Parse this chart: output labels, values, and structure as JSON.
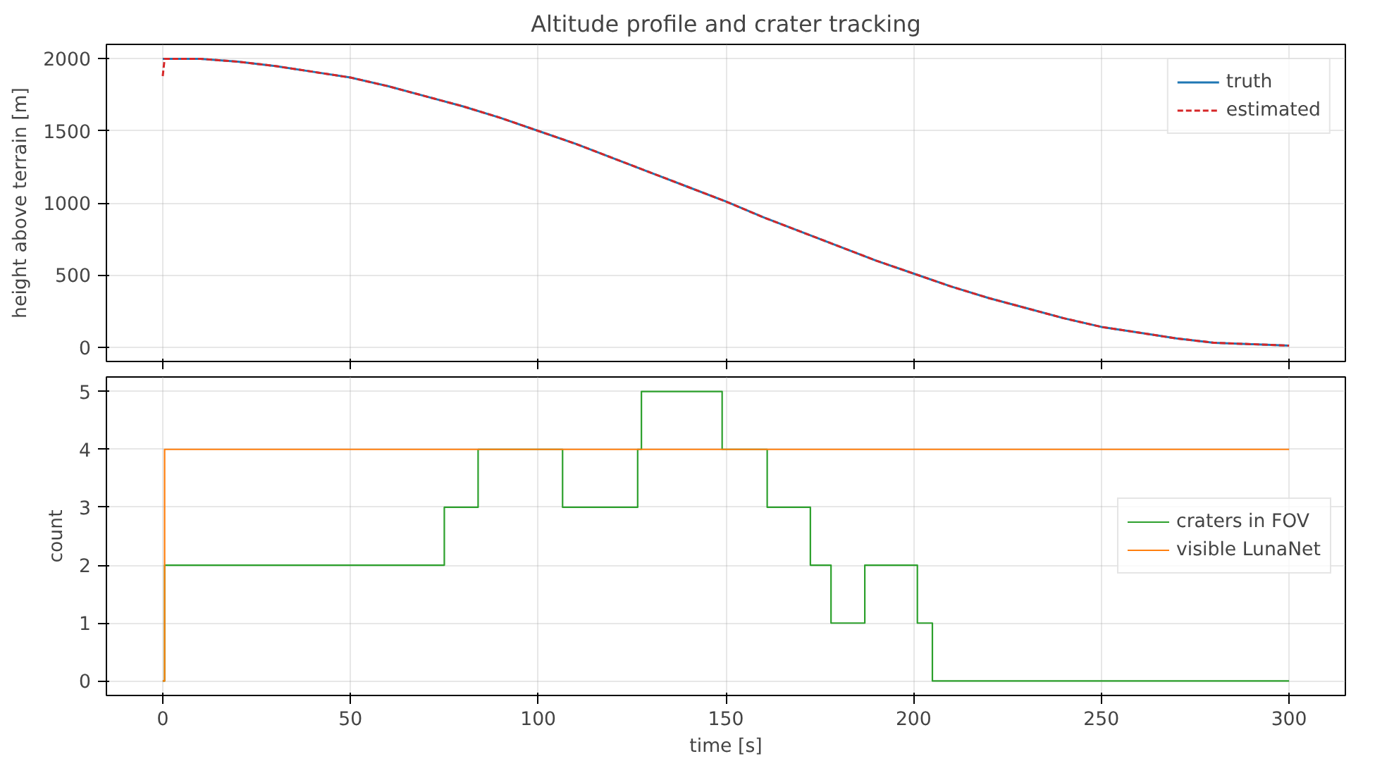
{
  "chart_data": [
    {
      "type": "line",
      "title": "Altitude profile and crater tracking",
      "ylabel": "height above terrain [m]",
      "x": [
        0,
        10,
        20,
        30,
        40,
        50,
        60,
        70,
        80,
        90,
        100,
        110,
        120,
        130,
        140,
        150,
        160,
        170,
        180,
        190,
        200,
        210,
        220,
        230,
        240,
        250,
        260,
        270,
        280,
        290,
        300
      ],
      "series": [
        {
          "name": "truth",
          "color": "#1f77b4",
          "values": [
            2000,
            2000,
            1980,
            1950,
            1910,
            1870,
            1810,
            1740,
            1670,
            1590,
            1500,
            1410,
            1310,
            1210,
            1110,
            1010,
            900,
            800,
            700,
            600,
            510,
            420,
            340,
            270,
            200,
            140,
            100,
            60,
            30,
            20,
            10
          ]
        },
        {
          "name": "estimated",
          "color": "#d62728",
          "line_style": "dashed",
          "x": [
            0,
            0.5,
            10,
            20,
            30,
            40,
            50,
            60,
            70,
            80,
            90,
            100,
            110,
            120,
            130,
            140,
            150,
            160,
            170,
            180,
            190,
            200,
            210,
            220,
            230,
            240,
            250,
            260,
            270,
            280,
            290,
            300
          ],
          "values": [
            1880,
            2000,
            2000,
            1980,
            1950,
            1910,
            1870,
            1810,
            1740,
            1670,
            1590,
            1500,
            1410,
            1310,
            1210,
            1110,
            1010,
            900,
            800,
            700,
            600,
            510,
            420,
            340,
            270,
            200,
            140,
            100,
            60,
            30,
            20,
            10
          ]
        }
      ],
      "xlim": [
        -15,
        315
      ],
      "xticks": [
        0,
        50,
        100,
        150,
        200,
        250,
        300
      ],
      "ylim": [
        -100,
        2100
      ],
      "yticks": [
        0,
        500,
        1000,
        1500,
        2000
      ],
      "grid": true,
      "legend": "top right",
      "tick_labels": "y"
    },
    {
      "type": "step",
      "xlabel": "time [s]",
      "ylabel": "count",
      "series": [
        {
          "name": "craters in FOV",
          "color": "#2ca02c",
          "x": [
            0,
            0.5,
            75,
            84,
            106.5,
            126.5,
            127.5,
            149,
            161,
            172.5,
            178,
            187,
            201,
            205,
            300
          ],
          "values": [
            0,
            2,
            3,
            4,
            3,
            4,
            5,
            4,
            3,
            2,
            1,
            2,
            1,
            0,
            0
          ]
        },
        {
          "name": "visible LunaNet",
          "color": "#ff7f0e",
          "x": [
            0,
            0.5,
            300
          ],
          "values": [
            0,
            4,
            4
          ]
        }
      ],
      "xlim": [
        -15,
        315
      ],
      "xticks": [
        0,
        50,
        100,
        150,
        200,
        250,
        300
      ],
      "ylim": [
        -0.25,
        5.25
      ],
      "yticks": [
        0,
        1,
        2,
        3,
        4,
        5
      ],
      "grid": true,
      "legend": "right"
    }
  ]
}
